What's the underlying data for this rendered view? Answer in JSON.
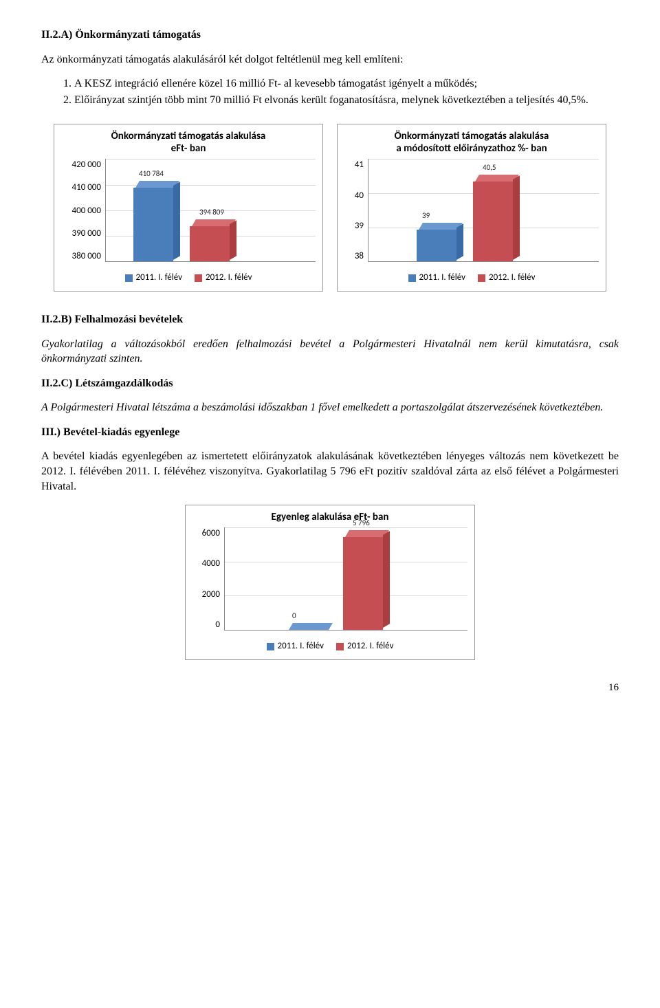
{
  "section_a": {
    "heading": "II.2.A)  Önkormányzati támogatás",
    "intro": "Az önkormányzati támogatás alakulásáról két dolgot feltétlenül meg kell említeni:",
    "list": [
      "A KESZ integráció ellenére közel 16 millió Ft- al kevesebb támogatást igényelt a működés;",
      "Előirányzat szintjén több mint 70 millió Ft elvonás került foganatosításra, melynek következtében a teljesítés 40,5%."
    ]
  },
  "chart1": {
    "title_lines": [
      "Önkormányzati támogatás alakulása",
      "eFt- ban"
    ],
    "yticks": [
      "420 000",
      "410 000",
      "400 000",
      "390 000",
      "380 000"
    ],
    "ylim": [
      380000,
      420000
    ],
    "bars": [
      {
        "value": 410784,
        "label": "410 784",
        "color": "#4a7ebb",
        "top_color": "#6a98cf",
        "side_color": "#3a6aa6"
      },
      {
        "value": 394809,
        "label": "394 809",
        "color": "#c44e52",
        "top_color": "#d76d70",
        "side_color": "#a93d40"
      }
    ],
    "legend": [
      {
        "label": "2011. I. félév",
        "color": "#4a7ebb"
      },
      {
        "label": "2012. I. félév",
        "color": "#c44e52"
      }
    ]
  },
  "chart2": {
    "title_lines": [
      "Önkormányzati támogatás alakulása",
      "a módosított előirányzathoz %- ban"
    ],
    "yticks": [
      "41",
      "40",
      "39",
      "38"
    ],
    "ylim": [
      38,
      41
    ],
    "bars": [
      {
        "value": 39,
        "label": "39",
        "color": "#4a7ebb",
        "top_color": "#6a98cf",
        "side_color": "#3a6aa6"
      },
      {
        "value": 40.5,
        "label": "40,5",
        "color": "#c44e52",
        "top_color": "#d76d70",
        "side_color": "#a93d40"
      }
    ],
    "legend": [
      {
        "label": "2011. I. félév",
        "color": "#4a7ebb"
      },
      {
        "label": "2012. I. félév",
        "color": "#c44e52"
      }
    ]
  },
  "section_b": {
    "heading": "II.2.B)  Felhalmozási bevételek",
    "para": "Gyakorlatilag a változásokból eredően felhalmozási bevétel a Polgármesteri Hivatalnál nem kerül kimutatásra, csak önkormányzati szinten."
  },
  "section_c": {
    "heading": "II.2.C) Létszámgazdálkodás",
    "para": "A Polgármesteri Hivatal létszáma a beszámolási időszakban 1 fővel emelkedett a portaszolgálat átszervezésének következtében."
  },
  "section_iii": {
    "heading": "III.) Bevétel-kiadás egyenlege",
    "para": "A bevétel kiadás egyenlegében az ismertetett előirányzatok alakulásának következtében lényeges változás nem következett be 2012. I. félévében 2011. I. félévéhez viszonyítva. Gyakorlatilag 5 796 eFt pozitív szaldóval zárta az első félévet a Polgármesteri Hivatal."
  },
  "chart3": {
    "title_lines": [
      "Egyenleg alakulása eFt- ban"
    ],
    "yticks": [
      "6000",
      "4000",
      "2000",
      "0"
    ],
    "ylim": [
      0,
      6000
    ],
    "bars": [
      {
        "value": 0,
        "label": "0",
        "color": "#4a7ebb",
        "top_color": "#6a98cf",
        "side_color": "#3a6aa6"
      },
      {
        "value": 5796,
        "label": "5 796",
        "color": "#c44e52",
        "top_color": "#d76d70",
        "side_color": "#a93d40"
      }
    ],
    "legend": [
      {
        "label": "2011. I. félév",
        "color": "#4a7ebb"
      },
      {
        "label": "2012. I. félév",
        "color": "#c44e52"
      }
    ]
  },
  "page_number": "16"
}
